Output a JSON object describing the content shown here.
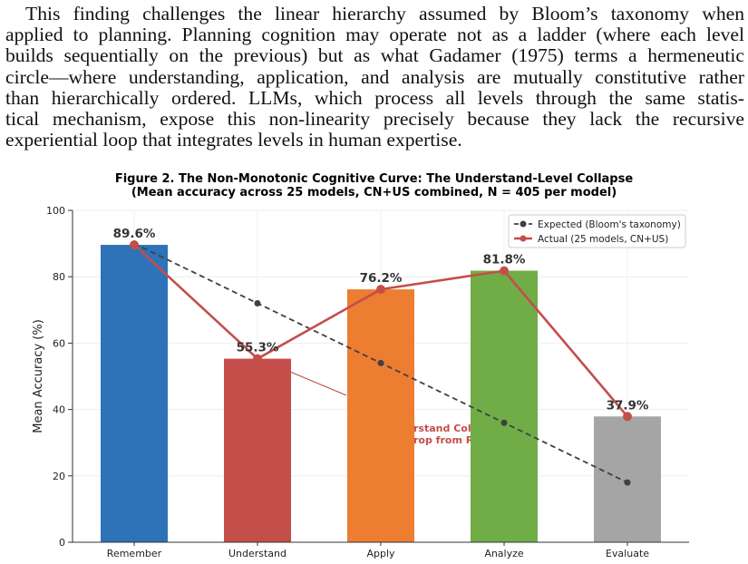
{
  "paragraph_lines": [
    "This finding challenges the linear hierarchy assumed by Bloom’s taxonomy when",
    "applied to planning. Planning cognition may operate not as a ladder (where each level",
    "builds sequentially on the previous) but as what Gadamer (1975) terms a hermeneutic",
    "circle—where understanding, application, and analysis are mutually constitutive rather",
    "than hierarchically ordered. LLMs, which process all levels through the same statis-",
    "tical mechanism, expose this non-linearity precisely because they lack the recursive",
    "experiential loop that integrates levels in human expertise."
  ],
  "figure": {
    "title_line1": "Figure 2. The Non-Monotonic Cognitive Curve: The Understand-Level Collapse",
    "title_line2": "(Mean accuracy across 25 models, CN+US combined, N = 405 per model)"
  },
  "chart_data": {
    "type": "bar",
    "categories": [
      "Remember",
      "Understand",
      "Apply",
      "Analyze",
      "Evaluate"
    ],
    "values": [
      89.6,
      55.3,
      76.2,
      81.8,
      37.9
    ],
    "value_labels": [
      "89.6%",
      "55.3%",
      "76.2%",
      "81.8%",
      "37.9%"
    ],
    "bar_colors": [
      "#2e72b8",
      "#c44e4a",
      "#ed7d31",
      "#70ad47",
      "#a5a5a5"
    ],
    "series": [
      {
        "name": "Expected (Bloom's taxonomy)",
        "values": [
          90,
          72,
          54,
          36,
          18
        ],
        "color": "#404040",
        "style": "dashed"
      },
      {
        "name": "Actual (25 models, CN+US)",
        "values": [
          89.6,
          55.3,
          76.2,
          81.8,
          37.9
        ],
        "color": "#c44e4a",
        "style": "solid"
      }
    ],
    "ylabel": "Mean Accuracy (%)",
    "ylim": [
      0,
      100
    ],
    "yticks": [
      "0",
      "20",
      "40",
      "60",
      "80",
      "100"
    ],
    "grid": true,
    "legend_position": "top-right",
    "annotation_lines": [
      "rstand Col",
      "rop from R"
    ]
  }
}
